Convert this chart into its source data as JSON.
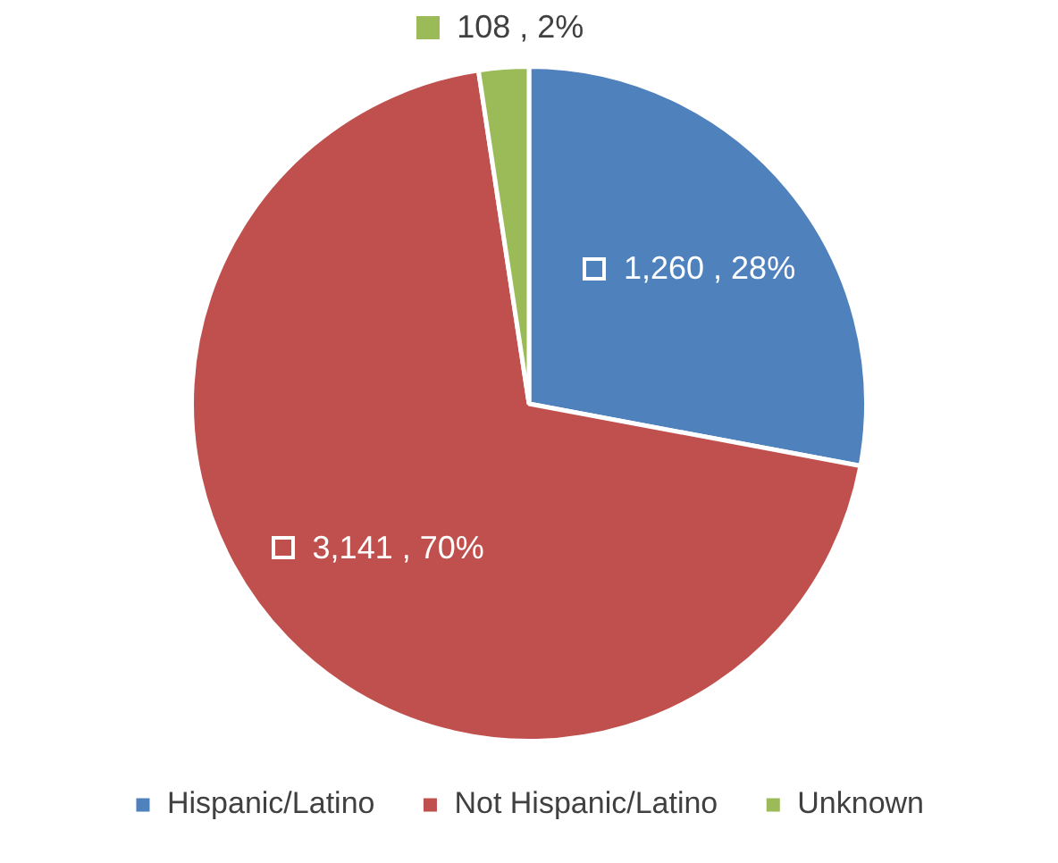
{
  "chart_data": {
    "type": "pie",
    "categories": [
      "Hispanic/Latino",
      "Not Hispanic/Latino",
      "Unknown"
    ],
    "values": [
      1260,
      3141,
      108
    ],
    "colors": [
      "#4f81bd",
      "#c0504d",
      "#9bbb59"
    ],
    "value_labels": [
      "1,260 , 28%",
      "3,141 , 70%",
      "108 , 2%"
    ],
    "legend": "bottom"
  }
}
